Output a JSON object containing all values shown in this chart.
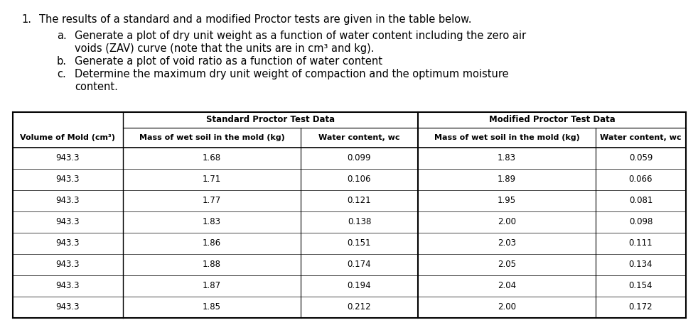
{
  "title_num": "1.",
  "title_text": "The results of a standard and a modified Proctor tests are given in the table below.",
  "bullet_a_label": "a.",
  "bullet_a_text1": "Generate a plot of dry unit weight as a function of water content including the zero air",
  "bullet_a_text2": "voids (ZAV) curve (note that the units are in cm³ and kg).",
  "bullet_b_label": "b.",
  "bullet_b_text": "Generate a plot of void ratio as a function of water content",
  "bullet_c_label": "c.",
  "bullet_c_text1": "Determine the maximum dry unit weight of compaction and the optimum moisture",
  "bullet_c_text2": "content.",
  "col0_header": "Volume of Mold (cm³)",
  "std_group_header": "Standard Proctor Test Data",
  "mod_group_header": "Modified Proctor Test Data",
  "col1_header": "Mass of wet soil in the mold (kg)",
  "col2_header": "Water content, wc",
  "col3_header": "Mass of wet soil in the mold (kg)",
  "col4_header": "Water content, wc",
  "volume": [
    943.3,
    943.3,
    943.3,
    943.3,
    943.3,
    943.3,
    943.3,
    943.3
  ],
  "std_mass": [
    1.68,
    1.71,
    1.77,
    1.83,
    1.86,
    1.88,
    1.87,
    1.85
  ],
  "std_wc": [
    0.099,
    0.106,
    0.121,
    0.138,
    0.151,
    0.174,
    0.194,
    0.212
  ],
  "mod_mass": [
    1.83,
    1.89,
    1.95,
    2.0,
    2.03,
    2.05,
    2.04,
    2.0
  ],
  "mod_wc": [
    0.059,
    0.066,
    0.081,
    0.098,
    0.111,
    0.134,
    0.154,
    0.172
  ],
  "bg_color": "#ffffff",
  "text_color": "#000000",
  "font_size_body": 10.5,
  "font_size_table": 8.5,
  "font_family": "DejaVu Sans"
}
